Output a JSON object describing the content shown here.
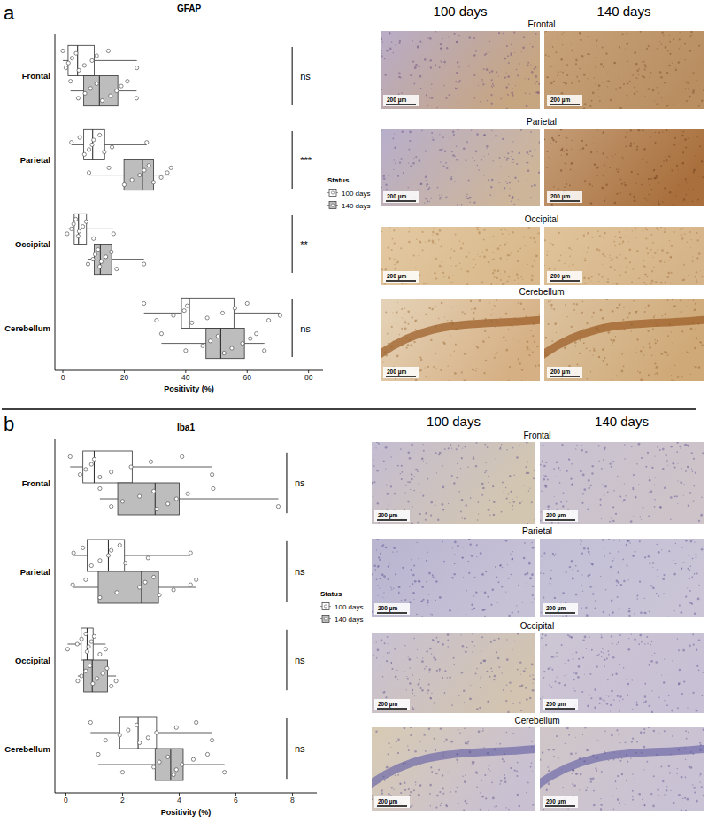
{
  "chart_data": [
    {
      "type": "box",
      "title": "GFAP",
      "orientation": "horizontal",
      "grid": false,
      "legend": "right",
      "x_label": "Positivity (%)",
      "legend_title": "Status",
      "categories": [
        "Frontal",
        "Parietal",
        "Occipital",
        "Cerebellum"
      ],
      "xlim": [
        -2.6,
        84.7
      ],
      "xticks": [
        0,
        20,
        40,
        60,
        80
      ],
      "significance": [
        "ns",
        "***",
        "**",
        "ns"
      ],
      "series": [
        {
          "name": "100 days",
          "color": "#ffffff",
          "boxes": [
            {
              "min": 0,
              "q1": 1.7,
              "median": 4.8,
              "q3": 10.2,
              "max": 24.1
            },
            {
              "min": 2.8,
              "q1": 6.8,
              "median": 9.7,
              "q3": 13.6,
              "max": 27.3
            },
            {
              "min": 1.4,
              "q1": 3.7,
              "median": 5.1,
              "q3": 7.7,
              "max": 16.5
            },
            {
              "min": 26.4,
              "q1": 38.6,
              "median": 41.2,
              "q3": 55.7,
              "max": 70.7
            }
          ],
          "points": [
            [
              0,
              1.0,
              1.8,
              3.0,
              4.3,
              5.2,
              7.0,
              9.5,
              11.0,
              14.8,
              24.1
            ],
            [
              2.8,
              5.5,
              7.0,
              8.5,
              9.5,
              10.0,
              12.0,
              13.5,
              16.0,
              27.3
            ],
            [
              1.4,
              2.8,
              3.5,
              4.2,
              5.0,
              5.3,
              6.5,
              7.6,
              10.0,
              16.5
            ],
            [
              26.4,
              30.5,
              36.0,
              39.5,
              40.5,
              42.0,
              47.0,
              52.0,
              56.0,
              60.0,
              67.0,
              70.7
            ]
          ]
        },
        {
          "name": "140 days",
          "color": "#bdbdbd",
          "boxes": [
            {
              "min": 2.5,
              "q1": 6.8,
              "median": 11.9,
              "q3": 17.9,
              "max": 24.0
            },
            {
              "min": 8.5,
              "q1": 19.9,
              "median": 25.9,
              "q3": 29.5,
              "max": 35.2
            },
            {
              "min": 8.2,
              "q1": 10.2,
              "median": 12.2,
              "q3": 15.9,
              "max": 26.4
            },
            {
              "min": 32.1,
              "q1": 46.6,
              "median": 51.4,
              "q3": 59.1,
              "max": 65.6
            }
          ],
          "points": [
            [
              2.5,
              5.0,
              7.2,
              9.0,
              11.0,
              12.8,
              15.5,
              17.5,
              19.0,
              21.0,
              24.0
            ],
            [
              8.5,
              15.0,
              20.0,
              22.5,
              25.0,
              26.5,
              28.0,
              29.5,
              32.0,
              34.0,
              35.2
            ],
            [
              8.2,
              9.8,
              10.5,
              11.5,
              12.0,
              12.5,
              14.0,
              15.8,
              17.5,
              26.4
            ],
            [
              32.1,
              40.0,
              45.5,
              48.0,
              50.5,
              52.5,
              55.0,
              58.5,
              61.0,
              63.0,
              65.6
            ]
          ]
        }
      ]
    },
    {
      "type": "box",
      "title": "Iba1",
      "orientation": "horizontal",
      "grid": false,
      "legend": "right",
      "x_label": "Positivity (%)",
      "legend_title": "Status",
      "categories": [
        "Frontal",
        "Parietal",
        "Occipital",
        "Cerebellum"
      ],
      "xlim": [
        -0.39,
        8.86
      ],
      "xticks": [
        0,
        2,
        4,
        6,
        8
      ],
      "significance": [
        "ns",
        "ns",
        "ns",
        "ns"
      ],
      "series": [
        {
          "name": "100 days",
          "color": "#ffffff",
          "boxes": [
            {
              "min": 0.15,
              "q1": 0.6,
              "median": 1.0,
              "q3": 2.34,
              "max": 5.16
            },
            {
              "min": 0.27,
              "q1": 0.75,
              "median": 1.5,
              "q3": 2.07,
              "max": 4.4
            },
            {
              "min": 0.06,
              "q1": 0.54,
              "median": 0.75,
              "q3": 0.96,
              "max": 1.4
            },
            {
              "min": 0.87,
              "q1": 1.9,
              "median": 2.55,
              "q3": 3.2,
              "max": 5.16
            }
          ],
          "points": [
            [
              0.15,
              0.5,
              0.7,
              0.9,
              1.0,
              1.2,
              1.6,
              2.3,
              3.0,
              4.1,
              5.16
            ],
            [
              0.27,
              0.6,
              0.9,
              1.2,
              1.5,
              1.6,
              1.9,
              2.1,
              2.9,
              4.4
            ],
            [
              0.06,
              0.4,
              0.55,
              0.7,
              0.75,
              0.8,
              0.9,
              1.0,
              1.2,
              1.4
            ],
            [
              0.87,
              1.4,
              1.9,
              2.2,
              2.5,
              2.6,
              2.9,
              3.2,
              3.9,
              4.6,
              5.16
            ]
          ]
        },
        {
          "name": "140 days",
          "color": "#bdbdbd",
          "boxes": [
            {
              "min": 1.2,
              "q1": 1.83,
              "median": 3.15,
              "q3": 4.0,
              "max": 7.5
            },
            {
              "min": 0.24,
              "q1": 1.14,
              "median": 2.67,
              "q3": 3.27,
              "max": 4.6
            },
            {
              "min": 0.42,
              "q1": 0.63,
              "median": 0.93,
              "q3": 1.47,
              "max": 1.77
            },
            {
              "min": 1.14,
              "q1": 3.15,
              "median": 3.7,
              "q3": 4.14,
              "max": 5.6
            }
          ],
          "points": [
            [
              1.2,
              1.6,
              2.0,
              2.6,
              3.1,
              3.2,
              3.6,
              3.9,
              4.3,
              5.2,
              7.5
            ],
            [
              0.24,
              0.7,
              1.2,
              1.8,
              2.6,
              2.8,
              3.1,
              3.3,
              3.8,
              4.4,
              4.6
            ],
            [
              0.42,
              0.55,
              0.7,
              0.85,
              0.95,
              1.1,
              1.3,
              1.45,
              1.6,
              1.77
            ],
            [
              1.14,
              2.0,
              3.1,
              3.3,
              3.6,
              3.8,
              3.9,
              4.1,
              4.5,
              5.0,
              5.6
            ]
          ]
        }
      ]
    }
  ],
  "panel_labels": [
    "a",
    "b"
  ],
  "micrographs": [
    {
      "columns": [
        "100 days",
        "140 days"
      ],
      "regions": [
        "Frontal",
        "Parietal",
        "Occipital",
        "Cerebellum"
      ],
      "scale_bar": "200 µm"
    },
    {
      "columns": [
        "100 days",
        "140 days"
      ],
      "regions": [
        "Frontal",
        "Parietal",
        "Occipital",
        "Cerebellum"
      ],
      "scale_bar": "200 µm"
    }
  ]
}
